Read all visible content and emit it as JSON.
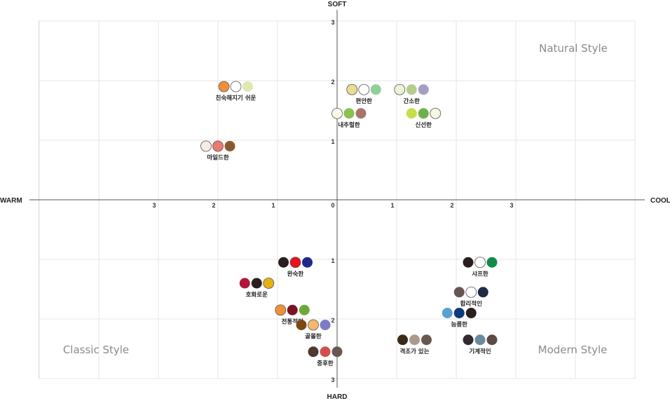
{
  "chart_data": {
    "type": "scatter",
    "axes": {
      "x_left_label": "WARM",
      "x_right_label": "COOL",
      "y_top_label": "SOFT",
      "y_bottom_label": "HARD",
      "xlim": [
        -3,
        3
      ],
      "ylim": [
        -3,
        3
      ],
      "x_ticks": [
        {
          "value": -3,
          "label": "3"
        },
        {
          "value": -2,
          "label": "2"
        },
        {
          "value": -1,
          "label": "1"
        },
        {
          "value": 0,
          "label": "0"
        },
        {
          "value": 1,
          "label": "1"
        },
        {
          "value": 2,
          "label": "2"
        },
        {
          "value": 3,
          "label": "3"
        }
      ],
      "y_ticks": [
        {
          "value": 3,
          "label": "3"
        },
        {
          "value": 2,
          "label": "2"
        },
        {
          "value": 1,
          "label": "1"
        },
        {
          "value": -1,
          "label": "1"
        },
        {
          "value": -2,
          "label": "2"
        },
        {
          "value": -3,
          "label": "3"
        }
      ],
      "grid": true
    },
    "quadrant_labels": {
      "top_right": "Natural Style",
      "bottom_left": "Classic Style",
      "bottom_right": "Modern Style"
    },
    "groups": [
      {
        "label": "친숙해지기 쉬운",
        "x": -1.7,
        "y": 1.9,
        "colors": [
          "#f0903a",
          "#ffffff",
          "#dde9b0"
        ]
      },
      {
        "label": "편안한",
        "x": 0.45,
        "y": 1.85,
        "colors": [
          "#ebdc90",
          "#ffffff",
          "#8fcf98"
        ]
      },
      {
        "label": "간소한",
        "x": 1.25,
        "y": 1.85,
        "colors": [
          "#eef2d9",
          "#b8cd8d",
          "#a39ec4"
        ]
      },
      {
        "label": "내추럴한",
        "x": 0.2,
        "y": 1.45,
        "colors": [
          "#fafae8",
          "#8cc050",
          "#a97468"
        ]
      },
      {
        "label": "신선한",
        "x": 1.45,
        "y": 1.45,
        "colors": [
          "#c7dd4a",
          "#6fb04a",
          "#f3f7e4"
        ]
      },
      {
        "label": "마일드한",
        "x": -2.0,
        "y": 0.9,
        "colors": [
          "#f9ebe0",
          "#ea7a72",
          "#8a5a2e"
        ]
      },
      {
        "label": "완숙한",
        "x": -0.7,
        "y": -1.05,
        "colors": [
          "#2a1e1e",
          "#e8131d",
          "#1f2a8c"
        ]
      },
      {
        "label": "샤프한",
        "x": 2.4,
        "y": -1.05,
        "colors": [
          "#2a1e1e",
          "#ffffff",
          "#128a4a"
        ]
      },
      {
        "label": "호화로운",
        "x": -1.35,
        "y": -1.4,
        "colors": [
          "#b3153a",
          "#2a1e1e",
          "#e8b010"
        ]
      },
      {
        "label": "합리적인",
        "x": 2.25,
        "y": -1.55,
        "colors": [
          "#685654",
          "#ffffff",
          "#1e2d44"
        ]
      },
      {
        "label": "전통적인",
        "x": -0.75,
        "y": -1.85,
        "colors": [
          "#f0903a",
          "#7a1424",
          "#6fa83a"
        ]
      },
      {
        "label": "늠름한",
        "x": 2.05,
        "y": -1.9,
        "colors": [
          "#5aa0d0",
          "#0e3a7a",
          "#2a1e1e"
        ]
      },
      {
        "label": "골몰한",
        "x": -0.4,
        "y": -2.1,
        "colors": [
          "#7b4718",
          "#f2b86e",
          "#7c7cc6"
        ]
      },
      {
        "label": "격조가 있는",
        "x": 1.3,
        "y": -2.35,
        "colors": [
          "#3a2a18",
          "#ab9a8c",
          "#6a5850"
        ]
      },
      {
        "label": "기계적인",
        "x": 2.4,
        "y": -2.35,
        "colors": [
          "#332a30",
          "#6a8aa0",
          "#5e4a44"
        ]
      },
      {
        "label": "중후한",
        "x": -0.2,
        "y": -2.55,
        "colors": [
          "#4a3a30",
          "#d05050",
          "#6a5650"
        ]
      }
    ]
  }
}
